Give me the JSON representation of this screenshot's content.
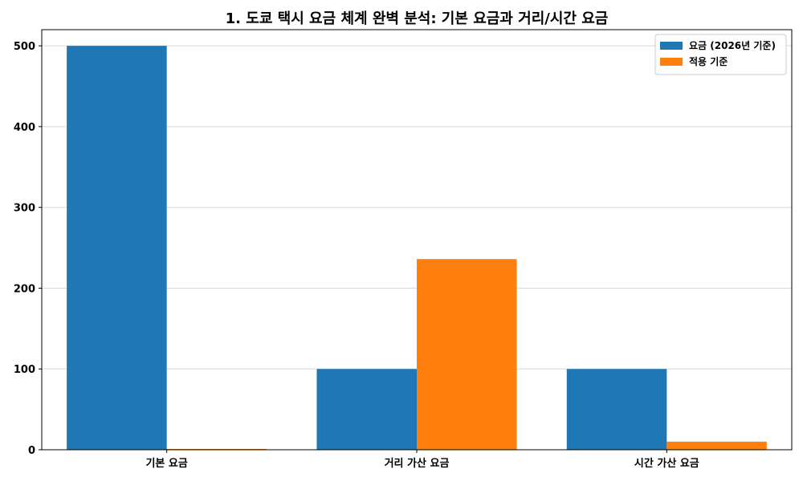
{
  "chart_data": {
    "type": "bar",
    "title": "1. 도쿄 택시 요금 체계 완벽 분석: 기본 요금과 거리/시간 요금",
    "xlabel": "",
    "ylabel": "",
    "categories": [
      "기본 요금",
      "거리 가산 요금",
      "시간 가산 요금"
    ],
    "series": [
      {
        "name": "요금 (2026년 기준)",
        "color": "#1f77b4",
        "values": [
          500,
          100,
          100
        ]
      },
      {
        "name": "적용 기준",
        "color": "#ff7f0e",
        "values": [
          1,
          236,
          10
        ]
      }
    ],
    "ylim": [
      0,
      520
    ],
    "yticks": [
      0,
      100,
      200,
      300,
      400,
      500
    ],
    "grid": true,
    "legend_position": "top-right"
  }
}
